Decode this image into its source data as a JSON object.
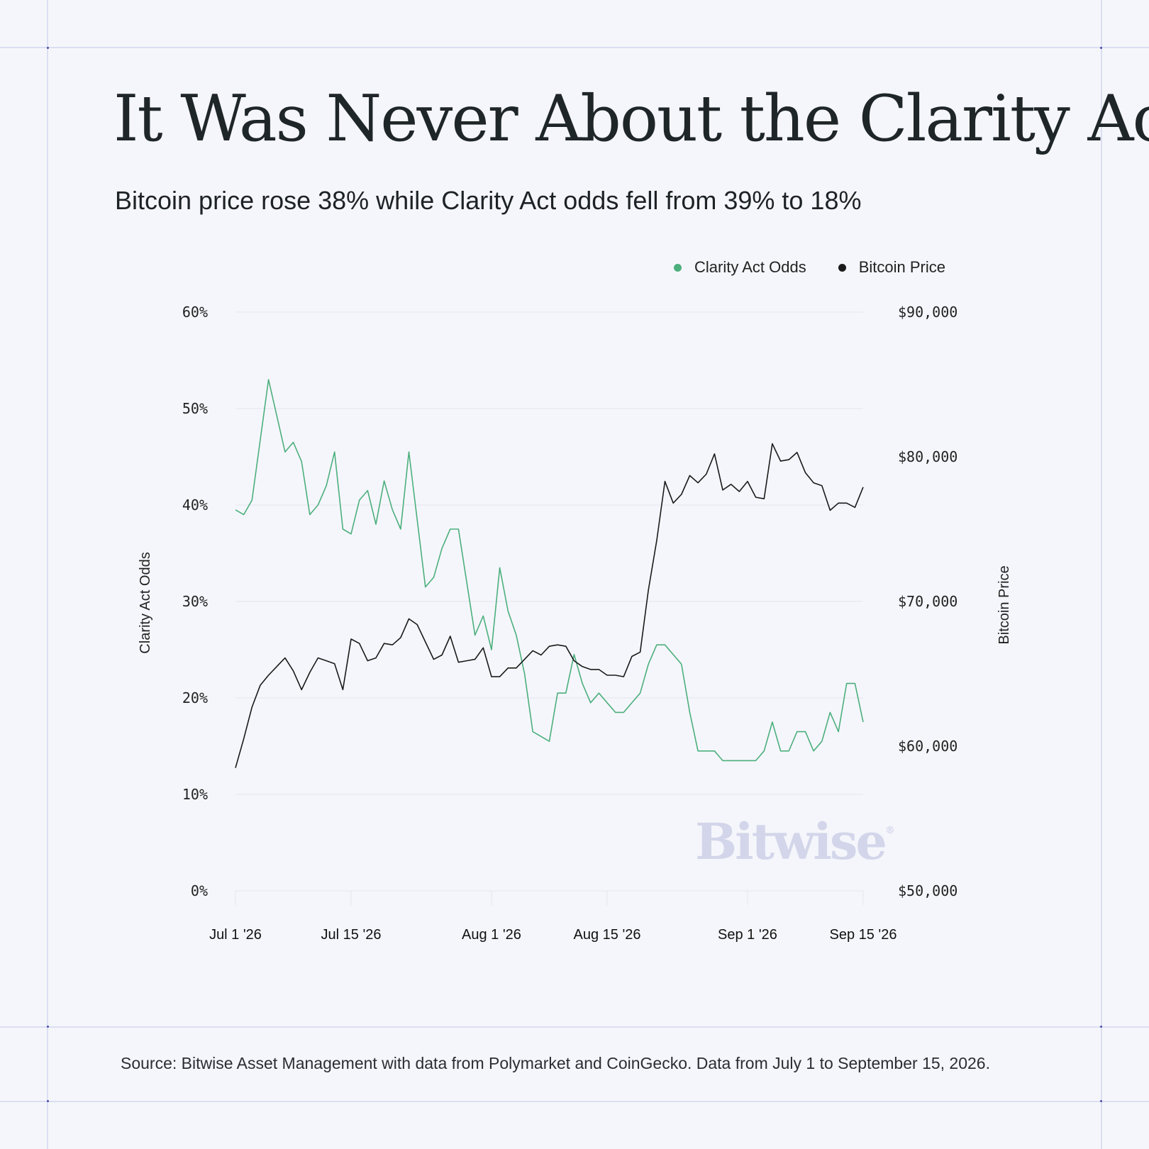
{
  "title": "It Was Never About the Clarity Act",
  "subtitle": "Bitcoin price rose 38% while Clarity Act odds fell from 39% to 18%",
  "source": "Source: Bitwise Asset Management with data from Polymarket and CoinGecko. Data from July 1 to September 15, 2026.",
  "watermark": "Bitwise",
  "watermark_mark": "®",
  "colors": {
    "clarity": "#4caf7d",
    "bitcoin": "#1a1a1a",
    "grid": "#e4e6ef",
    "background": "#f5f6fb"
  },
  "chart_data": {
    "type": "line",
    "title": "It Was Never About the Clarity Act",
    "subtitle": "Bitcoin price rose 38% while Clarity Act odds fell from 39% to 18%",
    "ylabel": "Clarity Act Odds",
    "y2label": "Bitcoin Price",
    "ylim": [
      0,
      60
    ],
    "y2lim": [
      50000,
      90000
    ],
    "yticks": [
      "0%",
      "10%",
      "20%",
      "30%",
      "40%",
      "50%",
      "60%"
    ],
    "y2ticks": [
      "$50,000",
      "$60,000",
      "$70,000",
      "$80,000",
      "$90,000"
    ],
    "xticks": [
      {
        "label": "Jul 1 '26",
        "day": 0
      },
      {
        "label": "Jul 15 '26",
        "day": 14
      },
      {
        "label": "Aug 1 '26",
        "day": 31
      },
      {
        "label": "Aug 15 '26",
        "day": 45
      },
      {
        "label": "Sep 1 '26",
        "day": 62
      },
      {
        "label": "Sep 15 '26",
        "day": 76
      }
    ],
    "grid": true,
    "legend_position": "top-right",
    "series": [
      {
        "name": "Clarity Act Odds",
        "axis": "left",
        "color": "#4caf7d",
        "points": [
          [
            0,
            39.5
          ],
          [
            1,
            39
          ],
          [
            2,
            40.5
          ],
          [
            4,
            53
          ],
          [
            6,
            45.5
          ],
          [
            7,
            46.5
          ],
          [
            8,
            44.5
          ],
          [
            9,
            39
          ],
          [
            10,
            40
          ],
          [
            11,
            42
          ],
          [
            12,
            45.5
          ],
          [
            13,
            37.5
          ],
          [
            14,
            37
          ],
          [
            15,
            40.5
          ],
          [
            16,
            41.5
          ],
          [
            17,
            38
          ],
          [
            18,
            42.5
          ],
          [
            19,
            39.5
          ],
          [
            20,
            37.5
          ],
          [
            21,
            45.5
          ],
          [
            23,
            31.5
          ],
          [
            24,
            32.5
          ],
          [
            25,
            35.5
          ],
          [
            26,
            37.5
          ],
          [
            27,
            37.5
          ],
          [
            29,
            26.5
          ],
          [
            30,
            28.5
          ],
          [
            31,
            25
          ],
          [
            32,
            33.5
          ],
          [
            33,
            29
          ],
          [
            34,
            26.5
          ],
          [
            35,
            22.5
          ],
          [
            36,
            16.5
          ],
          [
            38,
            15.5
          ],
          [
            39,
            20.5
          ],
          [
            40,
            20.5
          ],
          [
            41,
            24.5
          ],
          [
            42,
            21.5
          ],
          [
            43,
            19.5
          ],
          [
            44,
            20.5
          ],
          [
            45,
            19.5
          ],
          [
            46,
            18.5
          ],
          [
            47,
            18.5
          ],
          [
            49,
            20.5
          ],
          [
            50,
            23.5
          ],
          [
            51,
            25.5
          ],
          [
            52,
            25.5
          ],
          [
            54,
            23.5
          ],
          [
            55,
            18.5
          ],
          [
            56,
            14.5
          ],
          [
            58,
            14.5
          ],
          [
            59,
            13.5
          ],
          [
            63,
            13.5
          ],
          [
            64,
            14.5
          ],
          [
            65,
            17.5
          ],
          [
            66,
            14.5
          ],
          [
            67,
            14.5
          ],
          [
            68,
            16.5
          ],
          [
            69,
            16.5
          ],
          [
            70,
            14.5
          ],
          [
            71,
            15.5
          ],
          [
            72,
            18.5
          ],
          [
            73,
            16.5
          ],
          [
            74,
            21.5
          ],
          [
            75,
            21.5
          ],
          [
            76,
            17.5
          ]
        ]
      },
      {
        "name": "Bitcoin Price",
        "axis": "right",
        "color": "#1a1a1a",
        "points": [
          [
            0,
            58500
          ],
          [
            1,
            60500
          ],
          [
            2,
            62700
          ],
          [
            3,
            64200
          ],
          [
            4,
            64900
          ],
          [
            5,
            65500
          ],
          [
            6,
            66100
          ],
          [
            7,
            65200
          ],
          [
            8,
            63900
          ],
          [
            9,
            65100
          ],
          [
            10,
            66100
          ],
          [
            11,
            65900
          ],
          [
            12,
            65700
          ],
          [
            13,
            63900
          ],
          [
            14,
            67400
          ],
          [
            15,
            67100
          ],
          [
            16,
            65900
          ],
          [
            17,
            66100
          ],
          [
            18,
            67100
          ],
          [
            19,
            67000
          ],
          [
            20,
            67500
          ],
          [
            21,
            68800
          ],
          [
            22,
            68400
          ],
          [
            23,
            67200
          ],
          [
            24,
            66000
          ],
          [
            25,
            66300
          ],
          [
            26,
            67600
          ],
          [
            27,
            65800
          ],
          [
            28,
            65900
          ],
          [
            29,
            66000
          ],
          [
            30,
            66800
          ],
          [
            31,
            64800
          ],
          [
            32,
            64800
          ],
          [
            33,
            65400
          ],
          [
            34,
            65400
          ],
          [
            35,
            66000
          ],
          [
            36,
            66600
          ],
          [
            37,
            66300
          ],
          [
            38,
            66900
          ],
          [
            39,
            67000
          ],
          [
            40,
            66900
          ],
          [
            41,
            65900
          ],
          [
            42,
            65500
          ],
          [
            43,
            65300
          ],
          [
            44,
            65300
          ],
          [
            45,
            64900
          ],
          [
            46,
            64900
          ],
          [
            47,
            64800
          ],
          [
            48,
            66200
          ],
          [
            49,
            66500
          ],
          [
            50,
            70800
          ],
          [
            51,
            74200
          ],
          [
            52,
            78300
          ],
          [
            53,
            76800
          ],
          [
            54,
            77400
          ],
          [
            55,
            78700
          ],
          [
            56,
            78200
          ],
          [
            57,
            78800
          ],
          [
            58,
            80200
          ],
          [
            59,
            77700
          ],
          [
            60,
            78100
          ],
          [
            61,
            77600
          ],
          [
            62,
            78300
          ],
          [
            63,
            77200
          ],
          [
            64,
            77100
          ],
          [
            65,
            80900
          ],
          [
            66,
            79700
          ],
          [
            67,
            79800
          ],
          [
            68,
            80300
          ],
          [
            69,
            78900
          ],
          [
            70,
            78200
          ],
          [
            71,
            78000
          ],
          [
            72,
            76300
          ],
          [
            73,
            76800
          ],
          [
            74,
            76800
          ],
          [
            75,
            76500
          ],
          [
            76,
            77900
          ]
        ]
      }
    ]
  }
}
